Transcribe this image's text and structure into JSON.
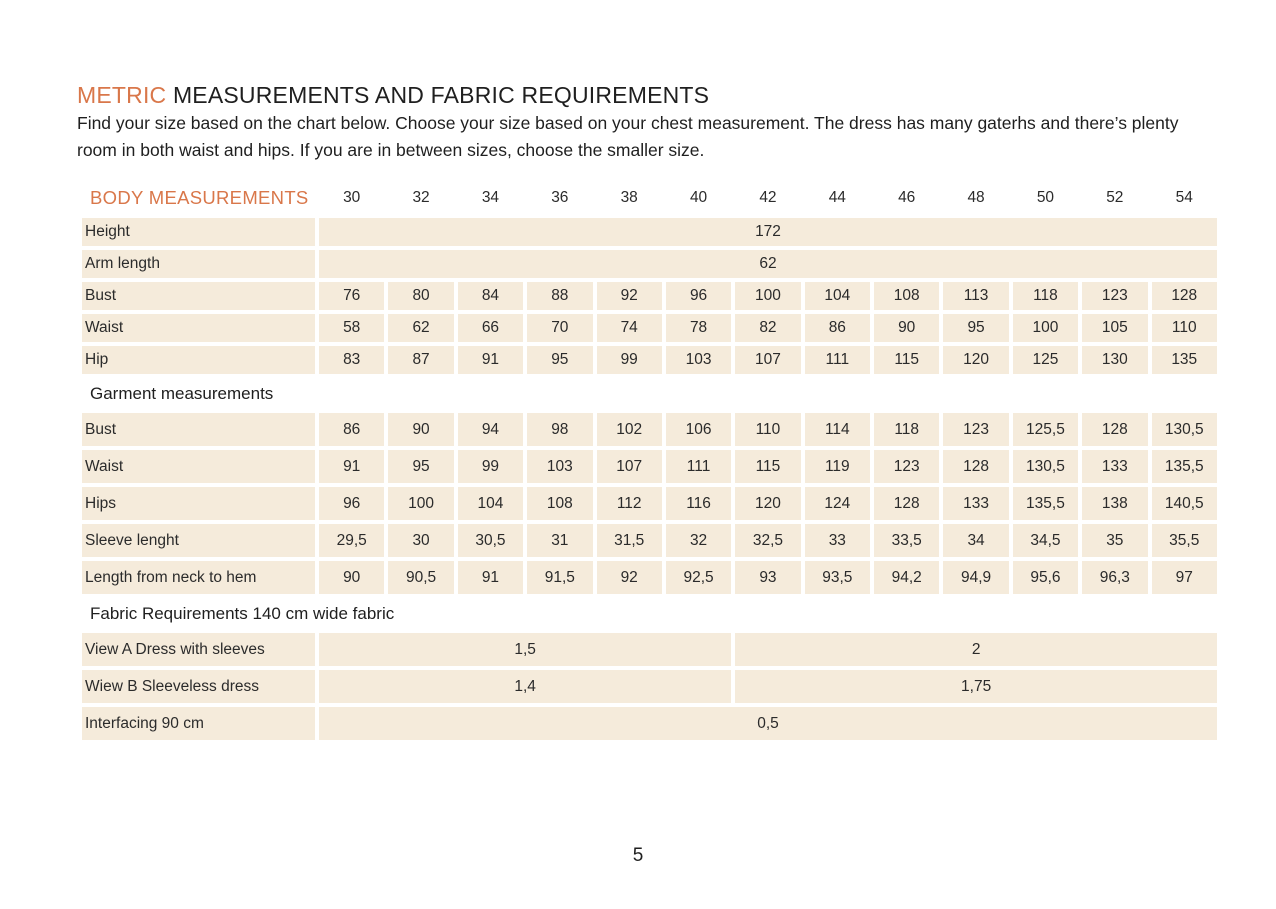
{
  "title": {
    "accent": "METRIC",
    "rest": " MEASUREMENTS AND FABRIC REQUIREMENTS"
  },
  "intro": "Find your size based on the chart below. Choose your size based on your chest measurement. The dress has many gaterhs and there’s plenty room in both waist and hips. If you are in between sizes, choose the smaller size.",
  "table": {
    "body_header": "BODY MEASUREMENTS",
    "sizes": [
      "30",
      "32",
      "34",
      "36",
      "38",
      "40",
      "42",
      "44",
      "46",
      "48",
      "50",
      "52",
      "54"
    ],
    "body_rows": {
      "height": {
        "label": "Height",
        "value": "172"
      },
      "arm_length": {
        "label": "Arm length",
        "value": "62"
      },
      "bust": {
        "label": "Bust",
        "values": [
          "76",
          "80",
          "84",
          "88",
          "92",
          "96",
          "100",
          "104",
          "108",
          "113",
          "118",
          "123",
          "128"
        ]
      },
      "waist": {
        "label": "Waist",
        "values": [
          "58",
          "62",
          "66",
          "70",
          "74",
          "78",
          "82",
          "86",
          "90",
          "95",
          "100",
          "105",
          "110"
        ]
      },
      "hip": {
        "label": "Hip",
        "values": [
          "83",
          "87",
          "91",
          "95",
          "99",
          "103",
          "107",
          "111",
          "115",
          "120",
          "125",
          "130",
          "135"
        ]
      }
    },
    "garment_header": "Garment measurements",
    "garment_rows": {
      "bust": {
        "label": "Bust",
        "values": [
          "86",
          "90",
          "94",
          "98",
          "102",
          "106",
          "110",
          "114",
          "118",
          "123",
          "125,5",
          "128",
          "130,5"
        ]
      },
      "waist": {
        "label": "Waist",
        "values": [
          "91",
          "95",
          "99",
          "103",
          "107",
          "111",
          "115",
          "119",
          "123",
          "128",
          "130,5",
          "133",
          "135,5"
        ]
      },
      "hips": {
        "label": "Hips",
        "values": [
          "96",
          "100",
          "104",
          "108",
          "112",
          "116",
          "120",
          "124",
          "128",
          "133",
          "135,5",
          "138",
          "140,5"
        ]
      },
      "sleeve": {
        "label": "Sleeve lenght",
        "values": [
          "29,5",
          "30",
          "30,5",
          "31",
          "31,5",
          "32",
          "32,5",
          "33",
          "33,5",
          "34",
          "34,5",
          "35",
          "35,5"
        ]
      },
      "length": {
        "label": "Length from neck to hem",
        "values": [
          "90",
          "90,5",
          "91",
          "91,5",
          "92",
          "92,5",
          "93",
          "93,5",
          "94,2",
          "94,9",
          "95,6",
          "96,3",
          "97"
        ]
      }
    },
    "fabric_header": "Fabric Requirements 140 cm wide fabric",
    "fabric_rows": {
      "view_a": {
        "label": "View A Dress with sleeves",
        "value_small": "1,5",
        "value_large": "2"
      },
      "view_b": {
        "label": "Wiew B Sleeveless dress",
        "value_small": "1,4",
        "value_large": "1,75"
      },
      "interfacing": {
        "label": "Interfacing 90 cm",
        "value": "0,5"
      }
    }
  },
  "page_number": "5",
  "colors": {
    "accent": "#d9774a",
    "cell_background": "#f5ebdb",
    "text": "#1f1f1f"
  }
}
